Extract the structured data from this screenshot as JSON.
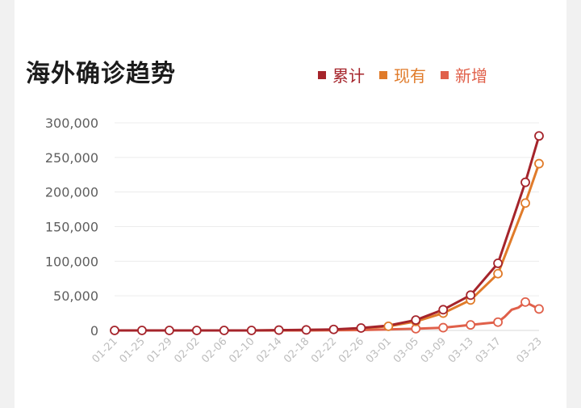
{
  "colors": {
    "cumulative": "#a5242b",
    "current": "#e07b2a",
    "new": "#e0604a"
  },
  "chart_data": {
    "type": "line",
    "title": "海外确诊趋势",
    "legend": [
      "累计",
      "现有",
      "新增"
    ],
    "legend_position": "top-right",
    "ylim": [
      0,
      300000
    ],
    "y_ticks": [
      "300,000",
      "250,000",
      "200,000",
      "150,000",
      "100,000",
      "50,000",
      "0"
    ],
    "y_tick_values": [
      300000,
      250000,
      200000,
      150000,
      100000,
      50000,
      0
    ],
    "x_tick_labels": [
      "01-21",
      "01-25",
      "01-29",
      "02-02",
      "02-06",
      "02-10",
      "02-14",
      "02-18",
      "02-22",
      "02-26",
      "03-01",
      "03-05",
      "03-09",
      "03-13",
      "03-17",
      "03-23"
    ],
    "grid": true,
    "series": [
      {
        "name": "累计",
        "color_key": "cumulative",
        "points": [
          {
            "x": "01-21",
            "y": 0
          },
          {
            "x": "01-25",
            "y": 0
          },
          {
            "x": "01-29",
            "y": 0
          },
          {
            "x": "02-02",
            "y": 0
          },
          {
            "x": "02-06",
            "y": 0
          },
          {
            "x": "02-10",
            "y": 0
          },
          {
            "x": "02-14",
            "y": 500
          },
          {
            "x": "02-18",
            "y": 800
          },
          {
            "x": "02-22",
            "y": 1500
          },
          {
            "x": "02-26",
            "y": 3500
          },
          {
            "x": "03-01",
            "y": 7000
          },
          {
            "x": "03-05",
            "y": 15000
          },
          {
            "x": "03-09",
            "y": 30000
          },
          {
            "x": "03-13",
            "y": 51000
          },
          {
            "x": "03-17",
            "y": 97000
          },
          {
            "x": "03-21",
            "y": 214000
          },
          {
            "x": "03-23",
            "y": 281000
          }
        ],
        "markers": [
          "01-21",
          "01-25",
          "01-29",
          "02-02",
          "02-06",
          "02-10",
          "02-14",
          "02-18",
          "02-22",
          "02-26",
          "03-05",
          "03-09",
          "03-13",
          "03-17",
          "03-21",
          "03-23"
        ]
      },
      {
        "name": "现有",
        "color_key": "current",
        "points": [
          {
            "x": "01-21",
            "y": 0
          },
          {
            "x": "01-25",
            "y": 0
          },
          {
            "x": "01-29",
            "y": 0
          },
          {
            "x": "02-02",
            "y": 0
          },
          {
            "x": "02-06",
            "y": 0
          },
          {
            "x": "02-10",
            "y": 0
          },
          {
            "x": "02-14",
            "y": 400
          },
          {
            "x": "02-18",
            "y": 700
          },
          {
            "x": "02-22",
            "y": 1200
          },
          {
            "x": "02-26",
            "y": 3000
          },
          {
            "x": "03-01",
            "y": 6000
          },
          {
            "x": "03-05",
            "y": 13000
          },
          {
            "x": "03-09",
            "y": 25000
          },
          {
            "x": "03-13",
            "y": 44000
          },
          {
            "x": "03-17",
            "y": 82000
          },
          {
            "x": "03-21",
            "y": 184000
          },
          {
            "x": "03-23",
            "y": 241000
          }
        ],
        "markers": [
          "03-01",
          "03-05",
          "03-09",
          "03-13",
          "03-17",
          "03-21",
          "03-23"
        ]
      },
      {
        "name": "新增",
        "color_key": "new",
        "points": [
          {
            "x": "01-21",
            "y": 0
          },
          {
            "x": "01-25",
            "y": 0
          },
          {
            "x": "01-29",
            "y": 0
          },
          {
            "x": "02-02",
            "y": 0
          },
          {
            "x": "02-06",
            "y": 0
          },
          {
            "x": "02-10",
            "y": 0
          },
          {
            "x": "02-14",
            "y": 0
          },
          {
            "x": "02-18",
            "y": 0
          },
          {
            "x": "02-22",
            "y": 200
          },
          {
            "x": "02-26",
            "y": 600
          },
          {
            "x": "03-01",
            "y": 1500
          },
          {
            "x": "03-05",
            "y": 2500
          },
          {
            "x": "03-09",
            "y": 4000
          },
          {
            "x": "03-13",
            "y": 8000
          },
          {
            "x": "03-15",
            "y": 10000
          },
          {
            "x": "03-17",
            "y": 12000
          },
          {
            "x": "03-18",
            "y": 20000
          },
          {
            "x": "03-19",
            "y": 30000
          },
          {
            "x": "03-20",
            "y": 33000
          },
          {
            "x": "03-21",
            "y": 41000
          },
          {
            "x": "03-22",
            "y": 36000
          },
          {
            "x": "03-23",
            "y": 31000
          }
        ],
        "markers": [
          "03-05",
          "03-09",
          "03-13",
          "03-17",
          "03-21",
          "03-23"
        ]
      }
    ]
  }
}
